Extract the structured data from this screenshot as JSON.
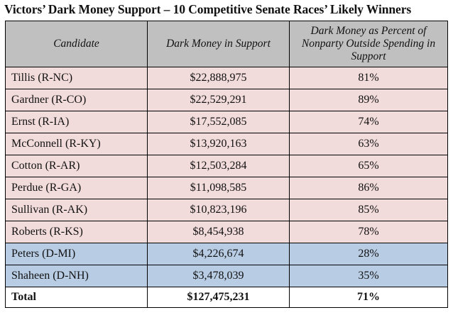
{
  "title": "Victors’ Dark Money Support – 10 Competitive Senate Races’ Likely Winners",
  "headers": {
    "candidate": "Candidate",
    "dark_money": "Dark Money in Support",
    "percent": "Dark Money as Percent of Nonparty Outside Spending in Support"
  },
  "rows": [
    {
      "candidate": "Tillis (R-NC)",
      "dark_money": "$22,888,975",
      "percent": "81%",
      "party": "R"
    },
    {
      "candidate": "Gardner (R-CO)",
      "dark_money": "$22,529,291",
      "percent": "89%",
      "party": "R"
    },
    {
      "candidate": "Ernst (R-IA)",
      "dark_money": "$17,552,085",
      "percent": "74%",
      "party": "R"
    },
    {
      "candidate": "McConnell (R-KY)",
      "dark_money": "$13,920,163",
      "percent": "63%",
      "party": "R"
    },
    {
      "candidate": "Cotton (R-AR)",
      "dark_money": "$12,503,284",
      "percent": "65%",
      "party": "R"
    },
    {
      "candidate": "Perdue (R-GA)",
      "dark_money": "$11,098,585",
      "percent": "86%",
      "party": "R"
    },
    {
      "candidate": "Sullivan (R-AK)",
      "dark_money": "$10,823,196",
      "percent": "85%",
      "party": "R"
    },
    {
      "candidate": "Roberts (R-KS)",
      "dark_money": "$8,454,938",
      "percent": "78%",
      "party": "R"
    },
    {
      "candidate": "Peters (D-MI)",
      "dark_money": "$4,226,674",
      "percent": "28%",
      "party": "D"
    },
    {
      "candidate": "Shaheen (D-NH)",
      "dark_money": "$3,478,039",
      "percent": "35%",
      "party": "D"
    }
  ],
  "total": {
    "label": "Total",
    "dark_money": "$127,475,231",
    "percent": "71%"
  },
  "colors": {
    "header_bg": "#c0c0c0",
    "republican_bg": "#f2dcdb",
    "democrat_bg": "#b8cce4"
  }
}
